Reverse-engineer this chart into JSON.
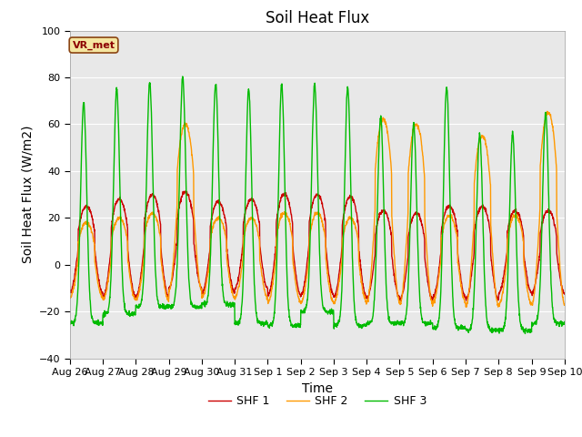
{
  "title": "Soil Heat Flux",
  "xlabel": "Time",
  "ylabel": "Soil Heat Flux (W/m2)",
  "ylim": [
    -40,
    100
  ],
  "yticks": [
    -40,
    -20,
    0,
    20,
    40,
    60,
    80,
    100
  ],
  "annotation": "VR_met",
  "line_colors": [
    "#cc0000",
    "#ff9900",
    "#00bb00"
  ],
  "line_labels": [
    "SHF 1",
    "SHF 2",
    "SHF 3"
  ],
  "line_width": 1.0,
  "background_color": "#e8e8e8",
  "fig_background": "#ffffff",
  "title_fontsize": 12,
  "axis_label_fontsize": 10,
  "tick_label_fontsize": 8,
  "legend_fontsize": 9,
  "xtick_labels": [
    "Aug 26",
    "Aug 27",
    "Aug 28",
    "Aug 29",
    "Aug 30",
    "Aug 31",
    "Sep 1",
    "Sep 2",
    "Sep 3",
    "Sep 4",
    "Sep 5",
    "Sep 6",
    "Sep 7",
    "Sep 8",
    "Sep 9",
    "Sep 10"
  ],
  "num_days": 15,
  "points_per_day": 144,
  "shf1_day_peaks": [
    25,
    28,
    30,
    31,
    27,
    28,
    30,
    30,
    29,
    23,
    22,
    25,
    25,
    23,
    23
  ],
  "shf2_day_peaks": [
    18,
    20,
    22,
    60,
    20,
    20,
    22,
    22,
    20,
    62,
    60,
    21,
    55,
    21,
    65
  ],
  "shf3_day_peaks": [
    69,
    75,
    78,
    80,
    77,
    75,
    77,
    77,
    76,
    63,
    60,
    76,
    56,
    56,
    65
  ],
  "shf1_night_troughs": [
    -12,
    -14,
    -14,
    -10,
    -12,
    -10,
    -13,
    -13,
    -14,
    -14,
    -15,
    -14,
    -15,
    -12,
    -12
  ],
  "shf2_night_troughs": [
    -14,
    -15,
    -15,
    -11,
    -14,
    -14,
    -16,
    -16,
    -16,
    -16,
    -17,
    -16,
    -18,
    -17,
    -17
  ],
  "shf3_night_troughs": [
    -25,
    -21,
    -18,
    -18,
    -17,
    -25,
    -26,
    -20,
    -26,
    -25,
    -25,
    -27,
    -28,
    -28,
    -25
  ]
}
